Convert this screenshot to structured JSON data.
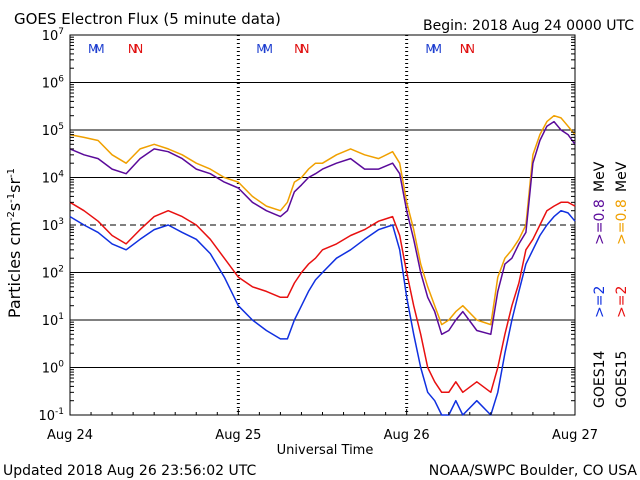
{
  "header": {
    "title": "GOES Electron Flux (5 minute data)",
    "begin": "Begin: 2018 Aug 24 0000 UTC"
  },
  "footer": {
    "updated": "Updated 2018 Aug 26 23:56:02 UTC",
    "credit": "NOAA/SWPC Boulder, CO USA"
  },
  "colors": {
    "goes14_ge08": "#5a0a9a",
    "goes15_ge08": "#f0a000",
    "goes14_ge2": "#1030e0",
    "goes15_ge2": "#e81010",
    "marker_m": "#1f3fd0",
    "marker_n": "#e01010"
  },
  "chart_data": {
    "type": "line",
    "title": "GOES Electron Flux (5 minute data)",
    "xlabel": "Universal Time",
    "ylabel": "Particles cm^-2 s^-1 sr^-1",
    "y_scale": "log",
    "ylim": [
      0.1,
      10000000
    ],
    "xlim": [
      "2018-08-24 00:00",
      "2018-08-27 00:00"
    ],
    "x_ticks": [
      "Aug 24",
      "Aug 25",
      "Aug 26",
      "Aug 27"
    ],
    "y_ticks": [
      {
        "base": "10",
        "exp": "7"
      },
      {
        "base": "10",
        "exp": "6"
      },
      {
        "base": "10",
        "exp": "5"
      },
      {
        "base": "10",
        "exp": "4"
      },
      {
        "base": "10",
        "exp": "3"
      },
      {
        "base": "10",
        "exp": "2"
      },
      {
        "base": "10",
        "exp": "1"
      },
      {
        "base": "10",
        "exp": "0"
      },
      {
        "base": "10",
        "exp": "-1"
      }
    ],
    "threshold_line": 1000,
    "grid": "horizontal at each decade",
    "markers": {
      "M": "2018-08-24 03:30, 2018-08-25 02:30, 2018-08-26 03:00",
      "N": "2018-08-24 08:30, 2018-08-25 07:30, 2018-08-26 07:30"
    },
    "legend_right": {
      "goes14": "GOES14",
      "goes15": "GOES15",
      "ge2_14": ">=2",
      "ge2_15": ">=2",
      "ge08_14": ">=0.8",
      "ge08_15": ">=0.8",
      "unit": "MeV"
    },
    "series": [
      {
        "name": ">=0.8 MeV GOES15",
        "color": "#f0a000",
        "x_hours": [
          0,
          2,
          4,
          6,
          8,
          10,
          12,
          14,
          16,
          18,
          20,
          22,
          24,
          26,
          28,
          30,
          31,
          32,
          33,
          34,
          35,
          36,
          38,
          40,
          42,
          44,
          46,
          47,
          48,
          49,
          50,
          51,
          52,
          53,
          54,
          55,
          56,
          58,
          60,
          61,
          62,
          63,
          64,
          65,
          66,
          67,
          68,
          69,
          70,
          71,
          72
        ],
        "values": [
          80000,
          70000,
          60000,
          30000,
          20000,
          40000,
          50000,
          40000,
          30000,
          20000,
          15000,
          10000,
          8000,
          4000,
          2500,
          2000,
          3000,
          8000,
          10000,
          15000,
          20000,
          20000,
          30000,
          40000,
          30000,
          25000,
          35000,
          20000,
          3000,
          800,
          150,
          50,
          20,
          8,
          10,
          15,
          20,
          10,
          8,
          80,
          200,
          300,
          500,
          1000,
          30000,
          80000,
          150000,
          200000,
          180000,
          120000,
          80000
        ]
      },
      {
        "name": ">=0.8 MeV GOES14",
        "color": "#5a0a9a",
        "x_hours": [
          0,
          2,
          4,
          6,
          8,
          10,
          12,
          14,
          16,
          18,
          20,
          22,
          24,
          26,
          28,
          30,
          31,
          32,
          33,
          34,
          35,
          36,
          38,
          40,
          42,
          44,
          46,
          47,
          48,
          49,
          50,
          51,
          52,
          53,
          54,
          55,
          56,
          58,
          60,
          61,
          62,
          63,
          64,
          65,
          66,
          67,
          68,
          69,
          70,
          71,
          72
        ],
        "values": [
          40000,
          30000,
          25000,
          15000,
          12000,
          25000,
          40000,
          35000,
          25000,
          15000,
          12000,
          8000,
          6000,
          3000,
          2000,
          1500,
          2000,
          5000,
          7000,
          10000,
          12000,
          15000,
          20000,
          25000,
          15000,
          15000,
          20000,
          12000,
          2000,
          500,
          100,
          30,
          15,
          5,
          6,
          10,
          15,
          6,
          5,
          40,
          150,
          200,
          400,
          700,
          20000,
          60000,
          120000,
          150000,
          100000,
          80000,
          50000
        ]
      },
      {
        "name": ">=2 MeV GOES15",
        "color": "#e81010",
        "x_hours": [
          0,
          2,
          4,
          6,
          8,
          10,
          12,
          14,
          16,
          18,
          20,
          22,
          24,
          26,
          28,
          30,
          31,
          32,
          33,
          34,
          35,
          36,
          38,
          40,
          42,
          44,
          46,
          47,
          48,
          49,
          50,
          51,
          52,
          53,
          54,
          55,
          56,
          58,
          60,
          61,
          62,
          63,
          64,
          65,
          66,
          67,
          68,
          69,
          70,
          71,
          72
        ],
        "values": [
          3000,
          2000,
          1200,
          600,
          400,
          800,
          1500,
          2000,
          1500,
          1000,
          500,
          200,
          80,
          50,
          40,
          30,
          30,
          60,
          100,
          150,
          200,
          300,
          400,
          600,
          800,
          1200,
          1500,
          600,
          100,
          20,
          5,
          1,
          0.5,
          0.3,
          0.3,
          0.5,
          0.3,
          0.5,
          0.3,
          1,
          5,
          20,
          60,
          300,
          500,
          1000,
          2000,
          2500,
          3000,
          3000,
          2500
        ]
      },
      {
        "name": ">=2 MeV GOES14",
        "color": "#1030e0",
        "x_hours": [
          0,
          2,
          4,
          6,
          8,
          10,
          12,
          14,
          16,
          18,
          20,
          22,
          24,
          26,
          28,
          30,
          31,
          32,
          33,
          34,
          35,
          36,
          38,
          40,
          42,
          44,
          46,
          47,
          48,
          49,
          50,
          51,
          52,
          53,
          54,
          55,
          56,
          58,
          60,
          61,
          62,
          63,
          64,
          65,
          66,
          67,
          68,
          69,
          70,
          71,
          72
        ],
        "values": [
          1500,
          1000,
          700,
          400,
          300,
          500,
          800,
          1000,
          700,
          500,
          250,
          80,
          20,
          10,
          6,
          4,
          4,
          10,
          20,
          40,
          70,
          100,
          200,
          300,
          500,
          800,
          1000,
          300,
          30,
          5,
          1,
          0.3,
          0.2,
          0.1,
          0.1,
          0.2,
          0.1,
          0.2,
          0.1,
          0.3,
          2,
          10,
          40,
          150,
          300,
          600,
          1000,
          1500,
          2000,
          1800,
          1200
        ]
      }
    ]
  }
}
